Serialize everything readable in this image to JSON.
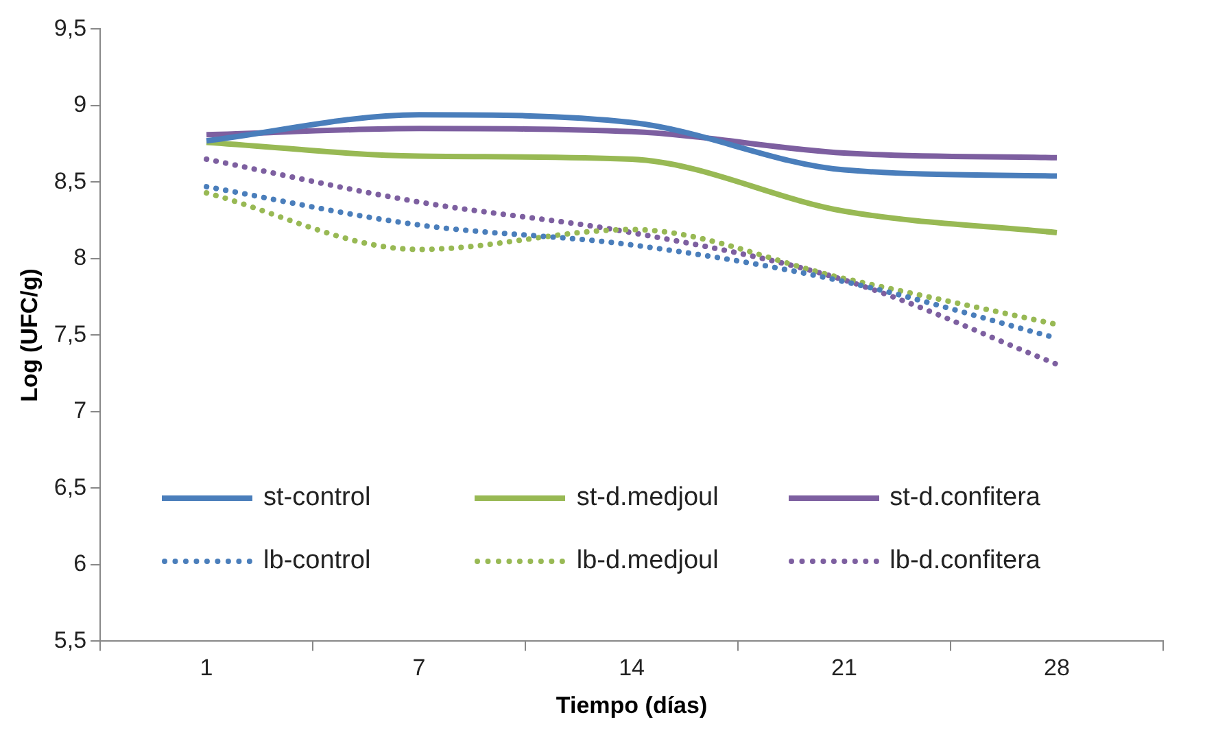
{
  "chart_data": {
    "type": "line",
    "xlabel": "Tiempo (días)",
    "ylabel": "Log (UFC/g)",
    "categories": [
      "1",
      "7",
      "14",
      "21",
      "28"
    ],
    "ylim": [
      5.5,
      9.5
    ],
    "yticks": [
      {
        "value": 5.5,
        "label": "5,5"
      },
      6,
      {
        "value": 6.5,
        "label": "6,5"
      },
      7,
      {
        "value": 7.5,
        "label": "7,5"
      },
      8,
      {
        "value": 8.5,
        "label": "8,5"
      },
      9,
      {
        "value": 9.5,
        "label": "9,5"
      }
    ],
    "grid": false,
    "legend": "bottom",
    "marker": "none",
    "series": [
      {
        "name": "st-control",
        "color": "#4a7ebb",
        "line_style": "solid",
        "values": [
          8.77,
          8.94,
          8.89,
          8.58,
          8.54
        ]
      },
      {
        "name": "st-d.medjoul",
        "color": "#98b954",
        "line_style": "solid",
        "values": [
          8.76,
          8.67,
          8.65,
          8.31,
          8.17
        ]
      },
      {
        "name": "st-d.confitera",
        "color": "#7d5fa0",
        "line_style": "solid",
        "values": [
          8.81,
          8.85,
          8.83,
          8.69,
          8.66
        ]
      },
      {
        "name": "lb-control",
        "color": "#4a7ebb",
        "line_style": "dotted",
        "values": [
          8.47,
          8.22,
          8.09,
          7.85,
          7.48
        ]
      },
      {
        "name": "lb-d.medjoul",
        "color": "#98b954",
        "line_style": "dotted",
        "values": [
          8.43,
          8.06,
          8.19,
          7.87,
          7.57
        ]
      },
      {
        "name": "lb-d.confitera",
        "color": "#7d5fa0",
        "line_style": "dotted",
        "values": [
          8.65,
          8.37,
          8.17,
          7.86,
          7.31
        ]
      }
    ]
  }
}
